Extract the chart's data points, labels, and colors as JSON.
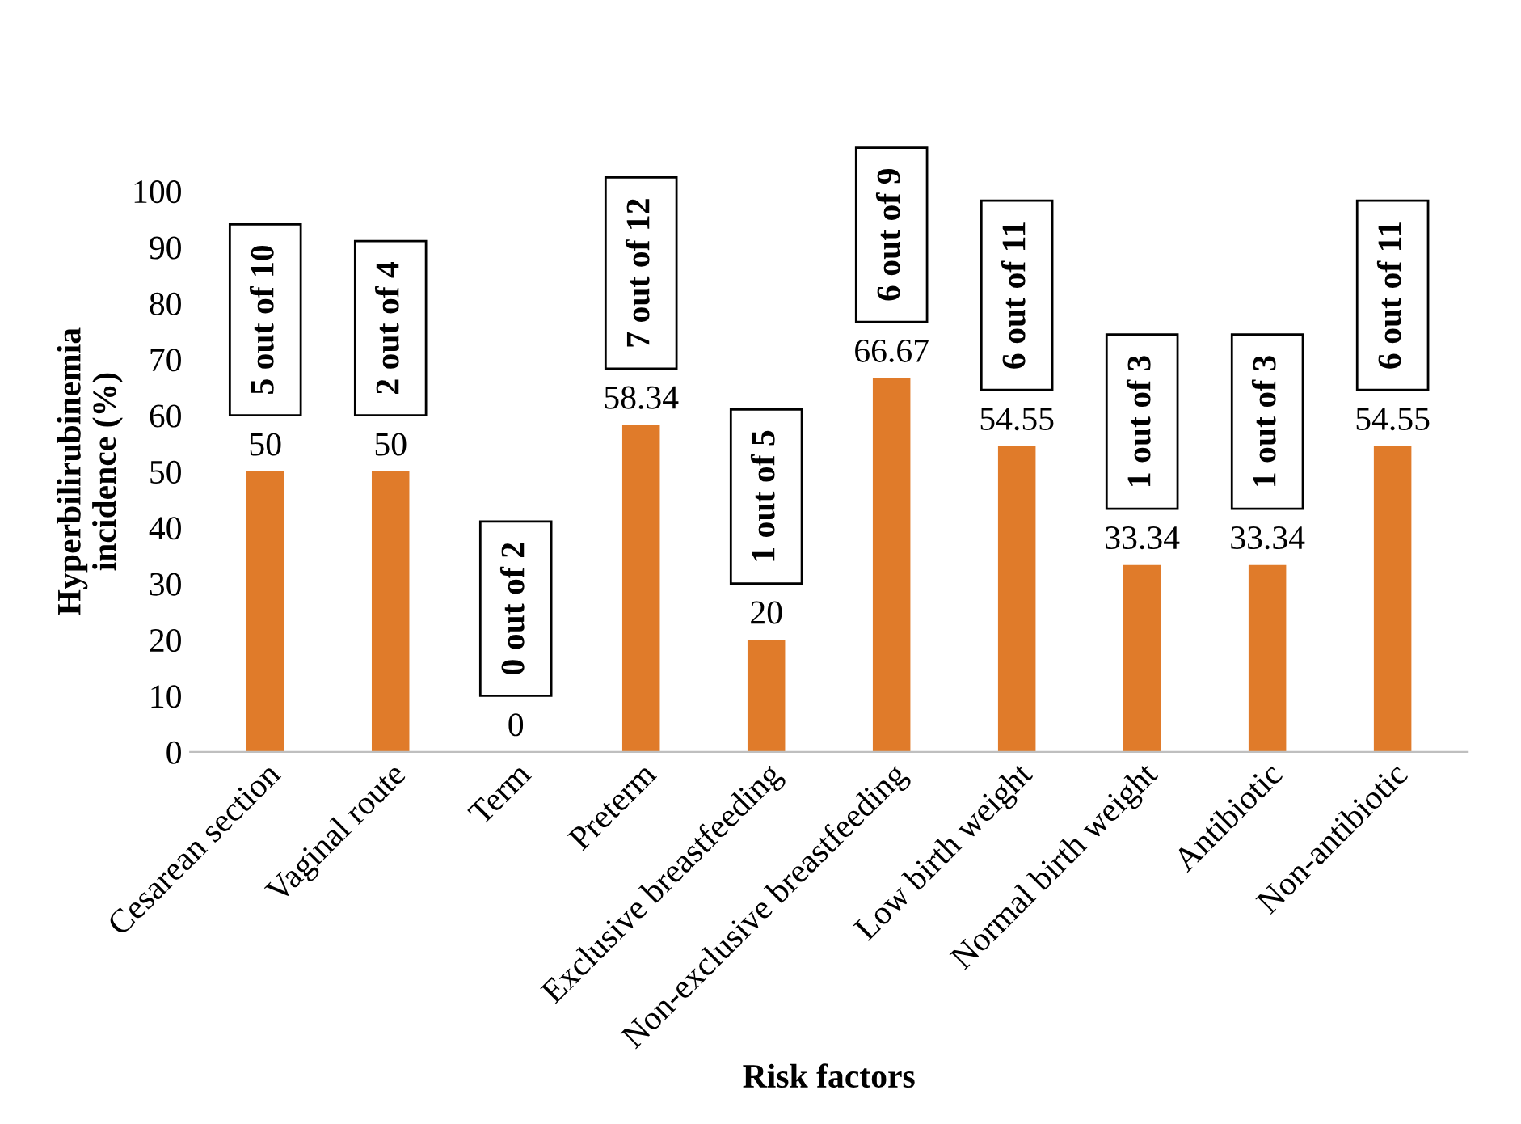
{
  "chart_data": {
    "type": "bar",
    "xlabel": "Risk factors",
    "ylabel": "Hyperbilirubinemia\nincidence (%)",
    "categories": [
      "Cesarean section",
      "Vaginal route",
      "Term",
      "Preterm",
      "Exclusive breastfeeding",
      "Non-exclusive breastfeeding",
      "Low birth weight",
      "Normal birth weight",
      "Antibiotic",
      "Non-antibiotic"
    ],
    "values": [
      50,
      50,
      0,
      58.34,
      20,
      66.67,
      54.55,
      33.34,
      33.34,
      54.55
    ],
    "color": "#e07b2a",
    "data_labels": true,
    "ylim": [
      0,
      100
    ],
    "yticks": [
      0,
      10,
      20,
      30,
      40,
      50,
      60,
      70,
      80,
      90,
      100
    ],
    "grid": false,
    "annotations": [
      {
        "text": "5 out of 10",
        "x": "Cesarean section",
        "y": 50
      },
      {
        "text": "2 out of 4",
        "x": "Vaginal route",
        "y": 50
      },
      {
        "text": "0 out of 2",
        "x": "Term",
        "y": 0
      },
      {
        "text": "7 out of 12",
        "x": "Preterm",
        "y": 58.34
      },
      {
        "text": "1 out of 5",
        "x": "Exclusive breastfeeding",
        "y": 20
      },
      {
        "text": "6 out of 9",
        "x": "Non-exclusive breastfeeding",
        "y": 66.67
      },
      {
        "text": "6 out of 11",
        "x": "Low birth weight",
        "y": 54.55
      },
      {
        "text": "1 out of 3",
        "x": "Normal birth weight",
        "y": 33.34
      },
      {
        "text": "1 out of 3",
        "x": "Antibiotic",
        "y": 33.34
      },
      {
        "text": "6 out of 11",
        "x": "Non-antibiotic",
        "y": 54.55
      }
    ]
  }
}
